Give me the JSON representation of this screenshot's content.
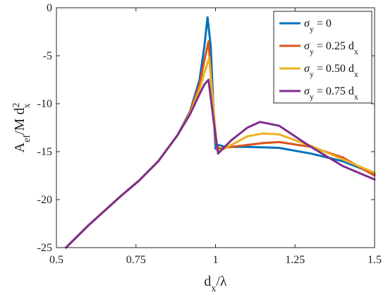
{
  "chart_data": {
    "type": "line",
    "xlim": [
      0.5,
      1.5
    ],
    "ylim": [
      -25,
      0
    ],
    "xticks": [
      0.5,
      0.75,
      1,
      1.25,
      1.5
    ],
    "xtick_labels": [
      "0.5",
      "0.75",
      "1",
      "1.25",
      "1.5"
    ],
    "yticks": [
      0,
      -5,
      -10,
      -15,
      -20,
      -25
    ],
    "ytick_labels": [
      "0",
      "-5",
      "-10",
      "-15",
      "-20",
      "-25"
    ],
    "xlabel": {
      "base": "d",
      "sub": "x",
      "rest": "/λ"
    },
    "ylabel": {
      "base": "A",
      "sub": "ef",
      "mid": "/M d",
      "sup": "2",
      "sub2": "x"
    },
    "grid": false,
    "legend_position": "top-right",
    "series": [
      {
        "color": "#0072BD",
        "legend": {
          "base": "σ",
          "sub": "y",
          "rest": " = 0",
          "sub2": ""
        },
        "x": [
          0.53,
          0.6,
          0.7,
          0.76,
          0.82,
          0.88,
          0.92,
          0.95,
          0.965,
          0.975,
          0.985,
          0.993,
          1.0,
          1.01,
          1.03,
          1.1,
          1.2,
          1.3,
          1.4,
          1.5
        ],
        "y": [
          -25.0,
          -22.7,
          -19.7,
          -18.0,
          -16.0,
          -13.3,
          -10.8,
          -7.5,
          -4.0,
          -1.0,
          -4.0,
          -10.0,
          -14.7,
          -14.3,
          -14.5,
          -14.5,
          -14.6,
          -15.2,
          -16.0,
          -17.3
        ]
      },
      {
        "color": "#D95319",
        "legend": {
          "base": "σ",
          "sub": "y",
          "rest": " = 0.25 d",
          "sub2": "x"
        },
        "x": [
          0.53,
          0.6,
          0.7,
          0.76,
          0.82,
          0.88,
          0.92,
          0.95,
          0.965,
          0.978,
          0.99,
          1.0,
          1.01,
          1.05,
          1.1,
          1.15,
          1.2,
          1.3,
          1.4,
          1.5
        ],
        "y": [
          -25.0,
          -22.7,
          -19.7,
          -18.0,
          -16.0,
          -13.3,
          -10.9,
          -8.0,
          -5.5,
          -3.5,
          -9.0,
          -13.9,
          -14.7,
          -14.5,
          -14.3,
          -14.1,
          -14.0,
          -14.5,
          -15.6,
          -17.5
        ]
      },
      {
        "color": "#EDB120",
        "legend": {
          "base": "σ",
          "sub": "y",
          "rest": " = 0.50 d",
          "sub2": "x"
        },
        "x": [
          0.53,
          0.6,
          0.7,
          0.76,
          0.82,
          0.88,
          0.92,
          0.95,
          0.965,
          0.98,
          0.995,
          1.005,
          1.015,
          1.05,
          1.1,
          1.15,
          1.2,
          1.3,
          1.4,
          1.5
        ],
        "y": [
          -25.0,
          -22.7,
          -19.7,
          -18.0,
          -16.0,
          -13.3,
          -11.0,
          -8.5,
          -6.8,
          -5.2,
          -11.0,
          -14.8,
          -14.9,
          -14.3,
          -13.4,
          -13.1,
          -13.2,
          -14.4,
          -15.8,
          -17.2
        ]
      },
      {
        "color": "#7E2F8E",
        "legend": {
          "base": "σ",
          "sub": "y",
          "rest": " = 0.75 d",
          "sub2": "x"
        },
        "x": [
          0.53,
          0.6,
          0.7,
          0.76,
          0.82,
          0.88,
          0.92,
          0.95,
          0.965,
          0.978,
          0.995,
          1.008,
          1.02,
          1.05,
          1.1,
          1.14,
          1.2,
          1.3,
          1.4,
          1.5
        ],
        "y": [
          -25.0,
          -22.7,
          -19.7,
          -18.0,
          -16.0,
          -13.3,
          -11.1,
          -9.0,
          -8.0,
          -7.5,
          -12.0,
          -15.2,
          -14.8,
          -13.8,
          -12.5,
          -11.9,
          -12.3,
          -14.5,
          -16.5,
          -17.9
        ]
      }
    ]
  }
}
